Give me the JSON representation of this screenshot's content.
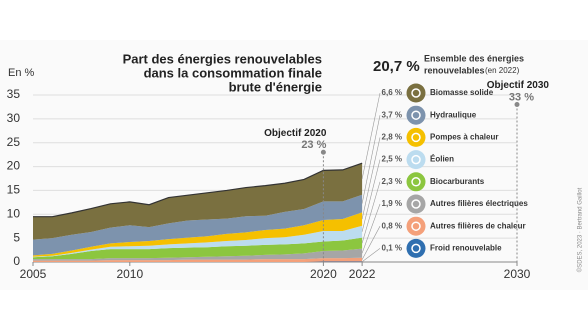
{
  "chart_data": {
    "type": "stacked_area",
    "title_lines": [
      "Part des énergies renouvelables",
      "dans la consommation finale",
      "brute d'énergie"
    ],
    "y_label": "En %",
    "x": [
      2005,
      2006,
      2007,
      2008,
      2009,
      2010,
      2011,
      2012,
      2013,
      2014,
      2015,
      2016,
      2017,
      2018,
      2019,
      2020,
      2021,
      2022
    ],
    "xlim": [
      2005,
      2030
    ],
    "xticks": [
      2005,
      2010,
      2020,
      2022,
      2030
    ],
    "ylim": [
      0,
      35
    ],
    "yticks": [
      0,
      5,
      10,
      15,
      20,
      25,
      30,
      35
    ],
    "grid": true,
    "series": [
      {
        "name": "Froid renouvelable",
        "color": "#2f6fb0",
        "values": [
          0,
          0,
          0,
          0,
          0,
          0,
          0,
          0,
          0,
          0,
          0,
          0,
          0,
          0,
          0,
          0.1,
          0.1,
          0.1
        ],
        "value_labels": [
          null,
          null,
          null,
          null,
          null,
          null,
          null,
          null,
          null,
          null,
          null,
          null,
          null,
          null,
          null,
          null,
          null,
          "0,1 %"
        ]
      },
      {
        "name": "Autres filières de chaleur",
        "color": "#f4a07a",
        "values": [
          0.3,
          0.3,
          0.3,
          0.3,
          0.4,
          0.4,
          0.4,
          0.4,
          0.5,
          0.5,
          0.5,
          0.5,
          0.6,
          0.6,
          0.6,
          0.7,
          0.7,
          0.8
        ],
        "value_labels": [
          null,
          null,
          null,
          null,
          null,
          null,
          null,
          null,
          null,
          null,
          null,
          null,
          null,
          null,
          null,
          null,
          null,
          "0,8 %"
        ]
      },
      {
        "name": "Autres filières électriques",
        "color": "#a6a6a6",
        "values": [
          0.3,
          0.3,
          0.3,
          0.3,
          0.4,
          0.4,
          0.4,
          0.5,
          0.5,
          0.6,
          0.7,
          0.8,
          0.9,
          1.0,
          1.2,
          1.5,
          1.6,
          1.9
        ],
        "value_labels": [
          null,
          null,
          null,
          null,
          null,
          null,
          null,
          null,
          null,
          null,
          null,
          null,
          null,
          null,
          null,
          null,
          null,
          "1,9 %"
        ]
      },
      {
        "name": "Biocarburants",
        "color": "#8cc63f",
        "values": [
          0.4,
          0.6,
          1.1,
          1.7,
          1.9,
          1.9,
          1.9,
          2.0,
          2.0,
          2.0,
          2.1,
          2.1,
          2.1,
          2.1,
          2.1,
          2.0,
          2.1,
          2.3
        ],
        "value_labels": [
          null,
          null,
          null,
          null,
          null,
          null,
          null,
          null,
          null,
          null,
          null,
          null,
          null,
          null,
          null,
          null,
          null,
          "2,3 %"
        ]
      },
      {
        "name": "Éolien",
        "color": "#bcdcef",
        "values": [
          0.1,
          0.1,
          0.2,
          0.3,
          0.5,
          0.6,
          0.7,
          0.8,
          0.9,
          1.0,
          1.1,
          1.2,
          1.4,
          1.5,
          1.8,
          2.2,
          2.0,
          2.5
        ],
        "value_labels": [
          null,
          null,
          null,
          null,
          null,
          null,
          null,
          null,
          null,
          null,
          null,
          null,
          null,
          null,
          null,
          null,
          null,
          "2,5 %"
        ]
      },
      {
        "name": "Pompes à chaleur",
        "color": "#f5c000",
        "values": [
          0.3,
          0.4,
          0.5,
          0.6,
          0.7,
          0.9,
          1.0,
          1.1,
          1.2,
          1.3,
          1.5,
          1.6,
          1.7,
          1.8,
          2.0,
          2.3,
          2.5,
          2.8
        ],
        "value_labels": [
          null,
          null,
          null,
          null,
          null,
          null,
          null,
          null,
          null,
          null,
          null,
          null,
          null,
          null,
          null,
          null,
          null,
          "2,8 %"
        ]
      },
      {
        "name": "Hydraulique",
        "color": "#7d93ad",
        "values": [
          3.3,
          3.3,
          3.3,
          3.1,
          3.3,
          3.5,
          2.9,
          3.3,
          3.6,
          3.5,
          3.2,
          3.4,
          3.0,
          3.5,
          3.4,
          3.9,
          3.7,
          3.7
        ],
        "value_labels": [
          null,
          null,
          null,
          null,
          null,
          null,
          null,
          null,
          null,
          null,
          null,
          null,
          null,
          null,
          null,
          null,
          null,
          "3,7 %"
        ]
      },
      {
        "name": "Biomasse solide",
        "color": "#7a7040",
        "values": [
          4.8,
          4.5,
          4.6,
          4.9,
          5.0,
          4.9,
          4.7,
          5.4,
          5.3,
          5.6,
          5.9,
          6.0,
          6.3,
          6.0,
          6.2,
          6.5,
          6.6,
          6.6
        ],
        "value_labels": [
          null,
          null,
          null,
          null,
          null,
          null,
          null,
          null,
          null,
          null,
          null,
          null,
          null,
          null,
          null,
          null,
          null,
          "6,6 %"
        ]
      }
    ],
    "total": {
      "value": 20.7,
      "label": "20,7 %",
      "text_lines": [
        "Ensemble des énergies",
        "renouvelables"
      ],
      "note": "(en 2022)"
    },
    "targets": [
      {
        "name": "Objectif 2020",
        "x": 2020,
        "value": 23,
        "label": "23 %"
      },
      {
        "name": "Objectif 2030",
        "x": 2030,
        "value": 33,
        "label": "33 %"
      }
    ],
    "credit": "©SDES, 2023 · Bertrand Gaillot"
  }
}
